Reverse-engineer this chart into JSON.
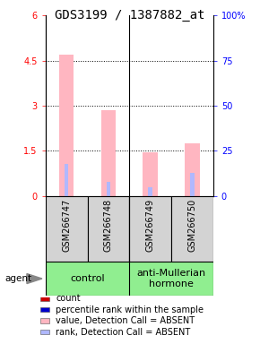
{
  "title": "GDS3199 / 1387882_at",
  "samples": [
    "GSM266747",
    "GSM266748",
    "GSM266749",
    "GSM266750"
  ],
  "ylim_left": [
    0,
    6
  ],
  "ylim_right": [
    0,
    100
  ],
  "yticks_left": [
    0,
    1.5,
    3,
    4.5,
    6
  ],
  "yticks_right": [
    0,
    25,
    50,
    75,
    100
  ],
  "ytick_labels_left": [
    "0",
    "1.5",
    "3",
    "4.5",
    "6"
  ],
  "ytick_labels_right": [
    "0",
    "25",
    "50",
    "75",
    "100%"
  ],
  "pink_bar_values": [
    4.7,
    2.85,
    1.45,
    1.75
  ],
  "blue_bar_values_pct": [
    18,
    8,
    5,
    13
  ],
  "bar_width": 0.35,
  "blue_bar_width": 0.1,
  "pink_color": "#ffb6c1",
  "blue_color": "#b0b8ff",
  "legend_items": [
    {
      "color": "#cc0000",
      "label": "count"
    },
    {
      "color": "#0000cc",
      "label": "percentile rank within the sample"
    },
    {
      "color": "#ffb6c1",
      "label": "value, Detection Call = ABSENT"
    },
    {
      "color": "#b0b8ff",
      "label": "rank, Detection Call = ABSENT"
    }
  ],
  "agent_label": "agent",
  "control_label": "control",
  "treatment_label": "anti-Mullerian\nhormone",
  "control_color": "#90ee90",
  "treatment_color": "#90ee90",
  "sample_box_color": "#d3d3d3",
  "title_fontsize": 10,
  "tick_fontsize": 7,
  "sample_fontsize": 7,
  "group_fontsize": 8,
  "legend_fontsize": 7
}
